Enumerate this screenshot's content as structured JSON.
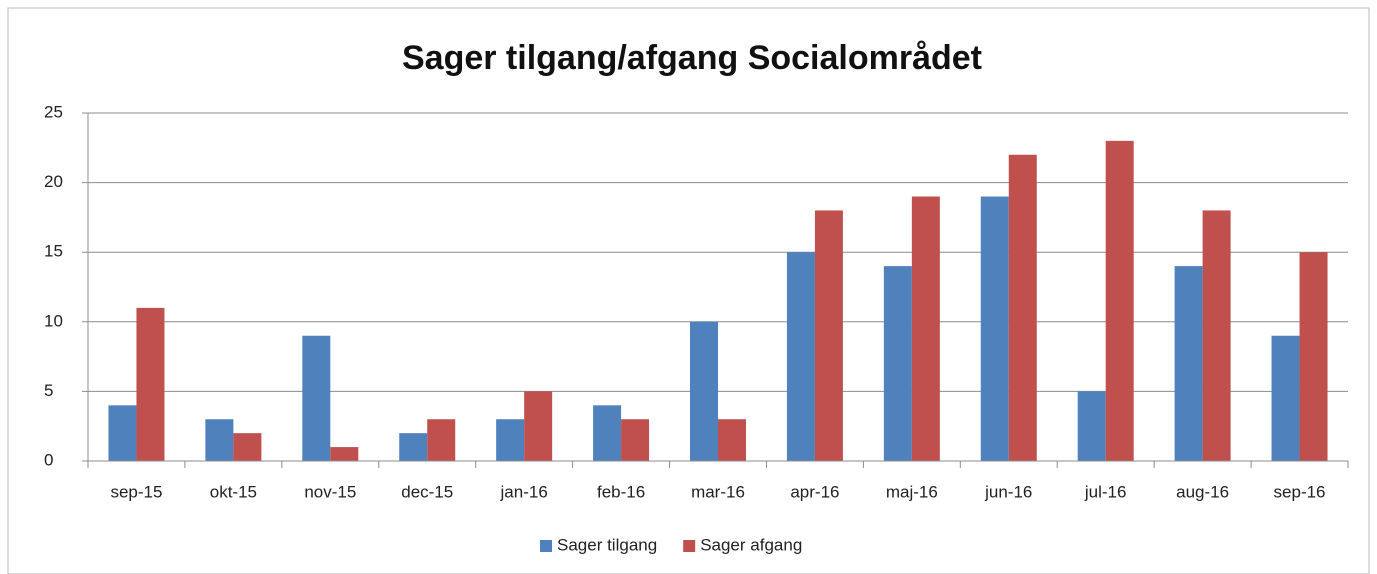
{
  "chart_data": {
    "type": "bar",
    "title": "Sager tilgang/afgang Socialområdet",
    "categories": [
      "sep-15",
      "okt-15",
      "nov-15",
      "dec-15",
      "jan-16",
      "feb-16",
      "mar-16",
      "apr-16",
      "maj-16",
      "jun-16",
      "jul-16",
      "aug-16",
      "sep-16"
    ],
    "series": [
      {
        "name": "Sager tilgang",
        "color": "#4f81bd",
        "values": [
          4,
          3,
          9,
          2,
          3,
          4,
          10,
          15,
          14,
          19,
          5,
          14,
          9
        ]
      },
      {
        "name": "Sager afgang",
        "color": "#c0504d",
        "values": [
          11,
          2,
          1,
          3,
          5,
          3,
          3,
          18,
          19,
          22,
          23,
          18,
          15
        ]
      }
    ],
    "ylim": [
      0,
      25
    ],
    "yticks": [
      0,
      5,
      10,
      15,
      20,
      25
    ],
    "grid": true,
    "legend": "bottom"
  }
}
